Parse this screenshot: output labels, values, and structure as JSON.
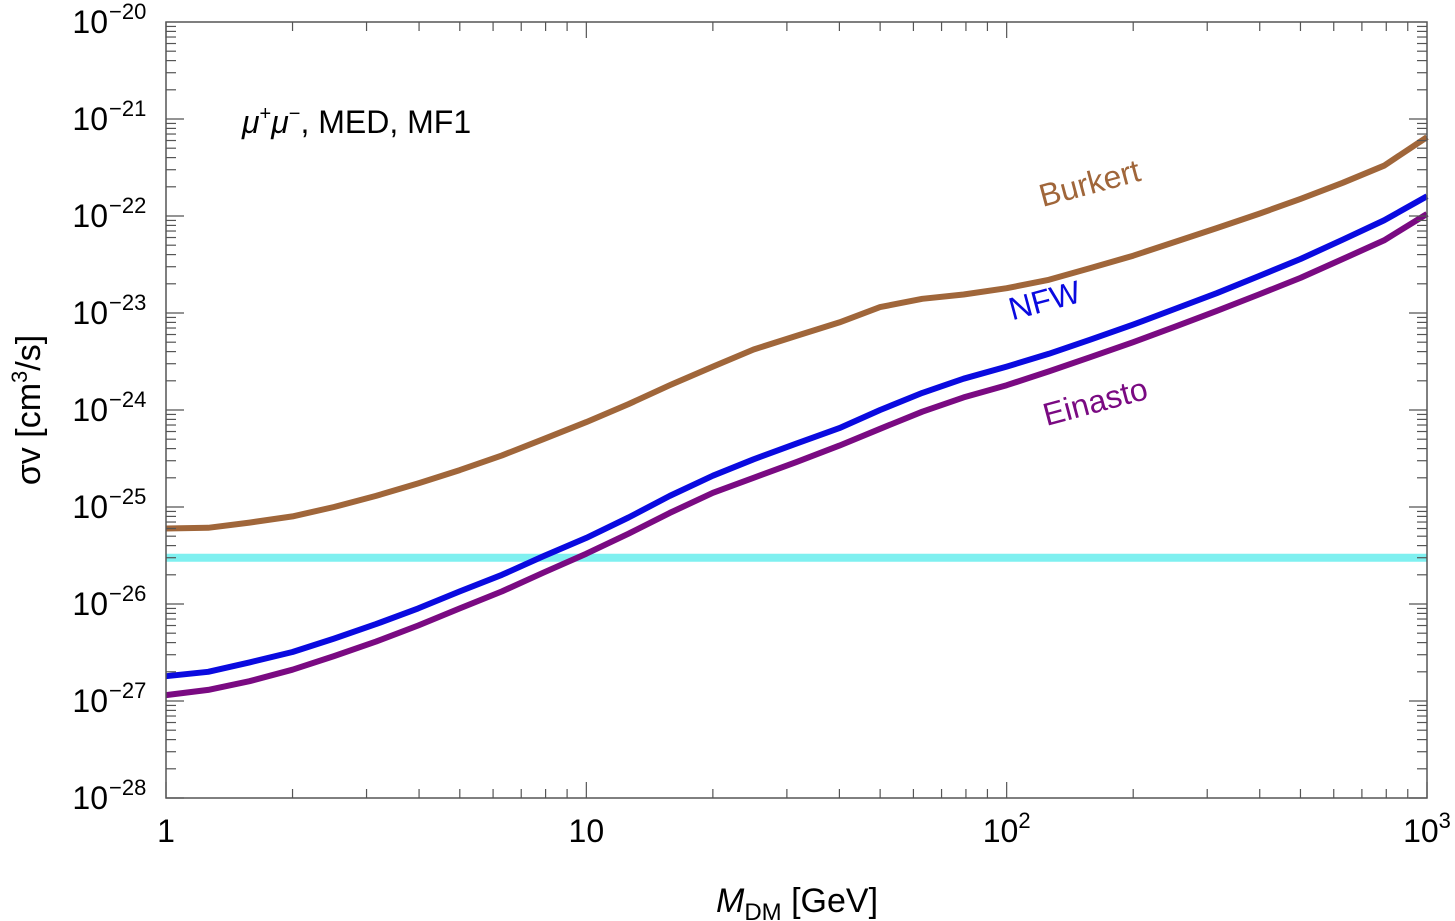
{
  "chart_data": {
    "type": "line",
    "title": "",
    "annotation": {
      "mu": "μ",
      "plus": "+",
      "minus": "−",
      "rest": ", MED, MF1"
    },
    "xlabel": {
      "symbol": "M",
      "subscript": "DM",
      "unit": " [GeV]"
    },
    "ylabel": {
      "text": "σv [cm",
      "sup": "3",
      "tail": "/s]"
    },
    "x_scale": "log",
    "y_scale": "log",
    "xlim": [
      1,
      1000
    ],
    "ylim": [
      1e-28,
      1e-20
    ],
    "x_ticks": [
      {
        "value": 1,
        "base": "1",
        "exp": ""
      },
      {
        "value": 10,
        "base": "10",
        "exp": ""
      },
      {
        "value": 100,
        "base": "10",
        "exp": "2"
      },
      {
        "value": 1000,
        "base": "10",
        "exp": "3"
      }
    ],
    "y_ticks": [
      {
        "value": 1e-28,
        "base": "10",
        "exp": "−28"
      },
      {
        "value": 1e-27,
        "base": "10",
        "exp": "−27"
      },
      {
        "value": 1e-26,
        "base": "10",
        "exp": "−26"
      },
      {
        "value": 1e-25,
        "base": "10",
        "exp": "−25"
      },
      {
        "value": 1e-24,
        "base": "10",
        "exp": "−24"
      },
      {
        "value": 1e-23,
        "base": "10",
        "exp": "−23"
      },
      {
        "value": 1e-22,
        "base": "10",
        "exp": "−22"
      },
      {
        "value": 1e-21,
        "base": "10",
        "exp": "−21"
      },
      {
        "value": 1e-20,
        "base": "10",
        "exp": "−20"
      }
    ],
    "grid": false,
    "series": [
      {
        "name": "Burkert",
        "color": "#a0663a",
        "x": [
          1,
          1.26,
          1.58,
          2,
          2.51,
          3.16,
          3.98,
          5,
          6.3,
          7.9,
          10,
          12.6,
          15.8,
          20,
          25,
          31.6,
          40,
          50,
          63,
          79,
          100,
          126,
          158,
          200,
          251,
          316,
          398,
          500,
          630,
          790,
          1000
        ],
        "y": [
          6e-26,
          6.1e-26,
          6.9e-26,
          8e-26,
          1e-25,
          1.3e-25,
          1.75e-25,
          2.4e-25,
          3.4e-25,
          5e-25,
          7.5e-25,
          1.15e-24,
          1.8e-24,
          2.8e-24,
          4.2e-24,
          5.8e-24,
          8e-24,
          1.15e-23,
          1.4e-23,
          1.55e-23,
          1.8e-23,
          2.2e-23,
          2.9e-23,
          3.9e-23,
          5.4e-23,
          7.5e-23,
          1.05e-22,
          1.5e-22,
          2.2e-22,
          3.3e-22,
          6.5e-22
        ]
      },
      {
        "name": "NFW",
        "color": "#0a0ae0",
        "x": [
          1,
          1.26,
          1.58,
          2,
          2.51,
          3.16,
          3.98,
          5,
          6.3,
          7.9,
          10,
          12.6,
          15.8,
          20,
          25,
          31.6,
          40,
          50,
          63,
          79,
          100,
          126,
          158,
          200,
          251,
          316,
          398,
          500,
          630,
          790,
          1000
        ],
        "y": [
          1.8e-27,
          2e-27,
          2.5e-27,
          3.2e-27,
          4.4e-27,
          6.2e-27,
          9e-27,
          1.35e-26,
          2e-26,
          3.1e-26,
          4.8e-26,
          7.8e-26,
          1.3e-25,
          2.1e-25,
          3.1e-25,
          4.5e-25,
          6.5e-25,
          1e-24,
          1.5e-24,
          2.1e-24,
          2.8e-24,
          3.8e-24,
          5.3e-24,
          7.6e-24,
          1.1e-23,
          1.6e-23,
          2.4e-23,
          3.6e-23,
          5.7e-23,
          9e-23,
          1.6e-22
        ]
      },
      {
        "name": "Einasto",
        "color": "#7a0a82",
        "x": [
          1,
          1.26,
          1.58,
          2,
          2.51,
          3.16,
          3.98,
          5,
          6.3,
          7.9,
          10,
          12.6,
          15.8,
          20,
          25,
          31.6,
          40,
          50,
          63,
          79,
          100,
          126,
          158,
          200,
          251,
          316,
          398,
          500,
          630,
          790,
          1000
        ],
        "y": [
          1.15e-27,
          1.3e-27,
          1.6e-27,
          2.1e-27,
          2.9e-27,
          4.1e-27,
          6e-27,
          9e-27,
          1.35e-26,
          2.1e-26,
          3.3e-26,
          5.3e-26,
          8.7e-26,
          1.4e-25,
          2e-25,
          2.9e-25,
          4.3e-25,
          6.4e-25,
          9.6e-25,
          1.35e-24,
          1.8e-24,
          2.5e-24,
          3.5e-24,
          5e-24,
          7.2e-24,
          1.05e-23,
          1.55e-23,
          2.3e-23,
          3.6e-23,
          5.6e-23,
          1.05e-22
        ]
      }
    ],
    "reference_lines": [
      {
        "value": 3e-26,
        "color": "#7ff0f0"
      }
    ],
    "series_labels": [
      {
        "name": "Burkert",
        "x": 160,
        "y": 1.7e-22,
        "angle": -15
      },
      {
        "name": "NFW",
        "x": 125,
        "y": 1.05e-23,
        "angle": -15
      },
      {
        "name": "Einasto",
        "x": 165,
        "y": 9.5e-25,
        "angle": -15
      }
    ]
  }
}
